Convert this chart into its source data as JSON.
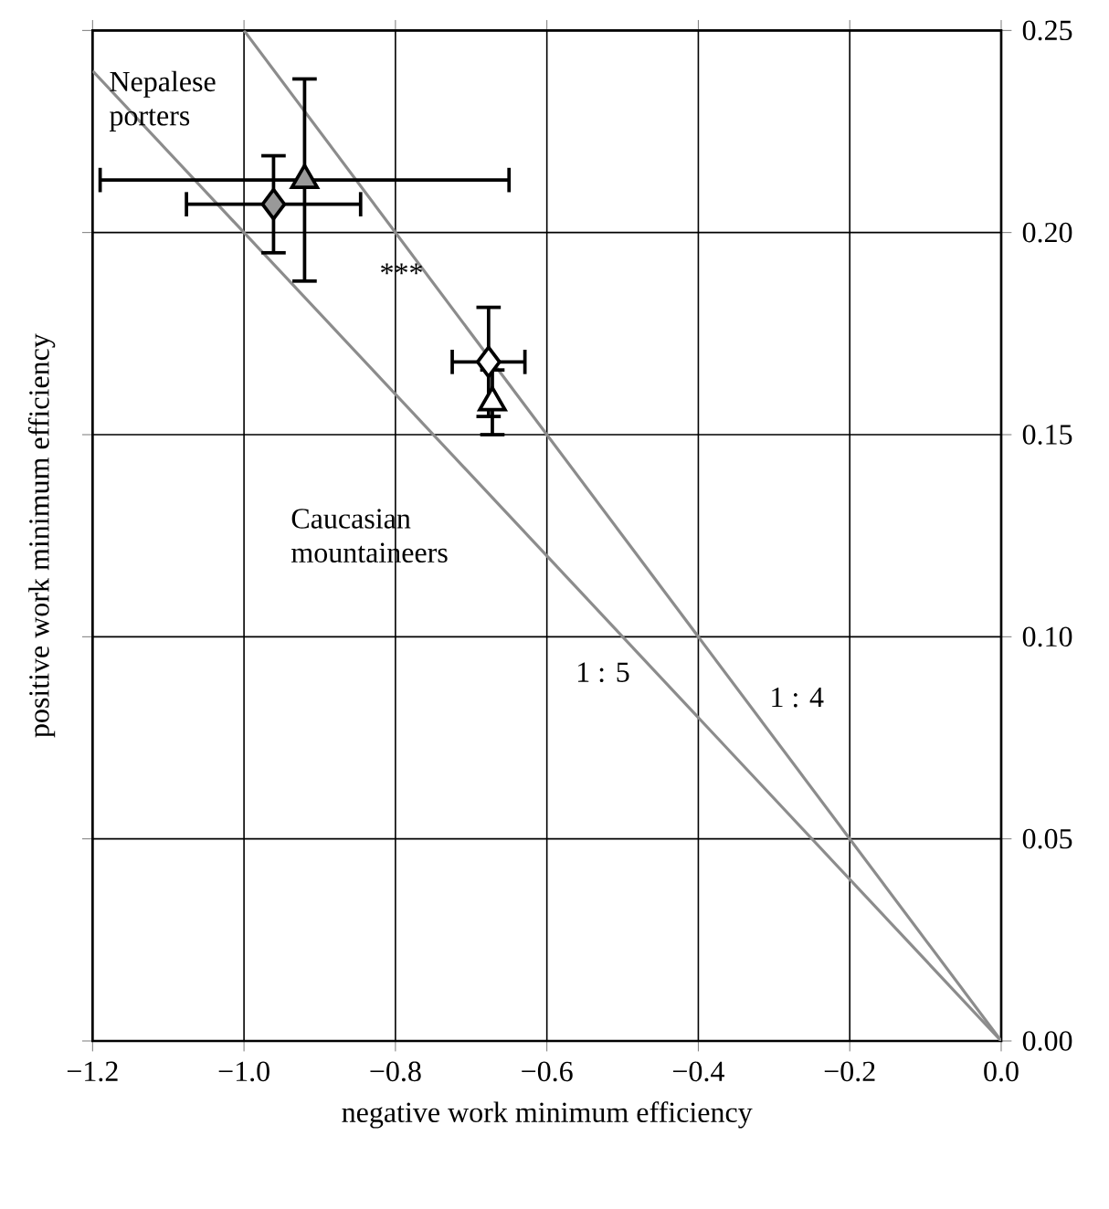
{
  "chart_data": {
    "type": "scatter",
    "xlabel": "negative work minimum efficiency",
    "ylabel": "positive work minimum efficiency",
    "xlim": [
      -1.2,
      0
    ],
    "ylim": [
      0,
      0.25
    ],
    "xticks": [
      {
        "value": -1.2,
        "label": "−1.2"
      },
      {
        "value": -1.0,
        "label": "−1.0"
      },
      {
        "value": -0.8,
        "label": "−0.8"
      },
      {
        "value": -0.6,
        "label": "−0.6"
      },
      {
        "value": -0.4,
        "label": "−0.4"
      },
      {
        "value": -0.2,
        "label": "−0.2"
      },
      {
        "value": 0,
        "label": "0.0"
      }
    ],
    "yticks": [
      {
        "value": 0,
        "label": "0.00"
      },
      {
        "value": 0.05,
        "label": "0.05"
      },
      {
        "value": 0.1,
        "label": "0.10"
      },
      {
        "value": 0.15,
        "label": "0.15"
      },
      {
        "value": 0.2,
        "label": "0.20"
      },
      {
        "value": 0.25,
        "label": "0.25"
      }
    ],
    "grid": true,
    "series": [
      {
        "type": "line",
        "name": "1 : 4",
        "color": "#8c8c8c",
        "x": [
          -1.0,
          0
        ],
        "values": [
          0.25,
          0
        ],
        "marker": "none"
      },
      {
        "type": "line",
        "name": "1 : 5",
        "color": "#8c8c8c",
        "x": [
          -1.2,
          0
        ],
        "values": [
          0.24,
          0
        ],
        "marker": "none"
      },
      {
        "color": "#999999",
        "marker": "diamond",
        "x": [
          -0.961
        ],
        "values": [
          0.207
        ],
        "errors": [
          0.012
        ],
        "xerrors": [
          0.115
        ]
      },
      {
        "color": "#999999",
        "marker": "triangle",
        "x": [
          -0.92
        ],
        "values": [
          0.213
        ],
        "errors": [
          0.025
        ],
        "xerrors": [
          0.27
        ]
      },
      {
        "color": "#ffffff",
        "marker": "diamond",
        "x": [
          -0.677
        ],
        "values": [
          0.168
        ],
        "errors": [
          0.0135
        ],
        "xerrors": [
          0.048
        ]
      },
      {
        "color": "#ffffff",
        "marker": "triangle",
        "x": [
          -0.672
        ],
        "values": [
          0.158
        ],
        "errors": [
          0.008
        ]
      }
    ],
    "annotations": [
      "Nepalese porters",
      "***",
      "Caucasian mountaineers"
    ]
  }
}
